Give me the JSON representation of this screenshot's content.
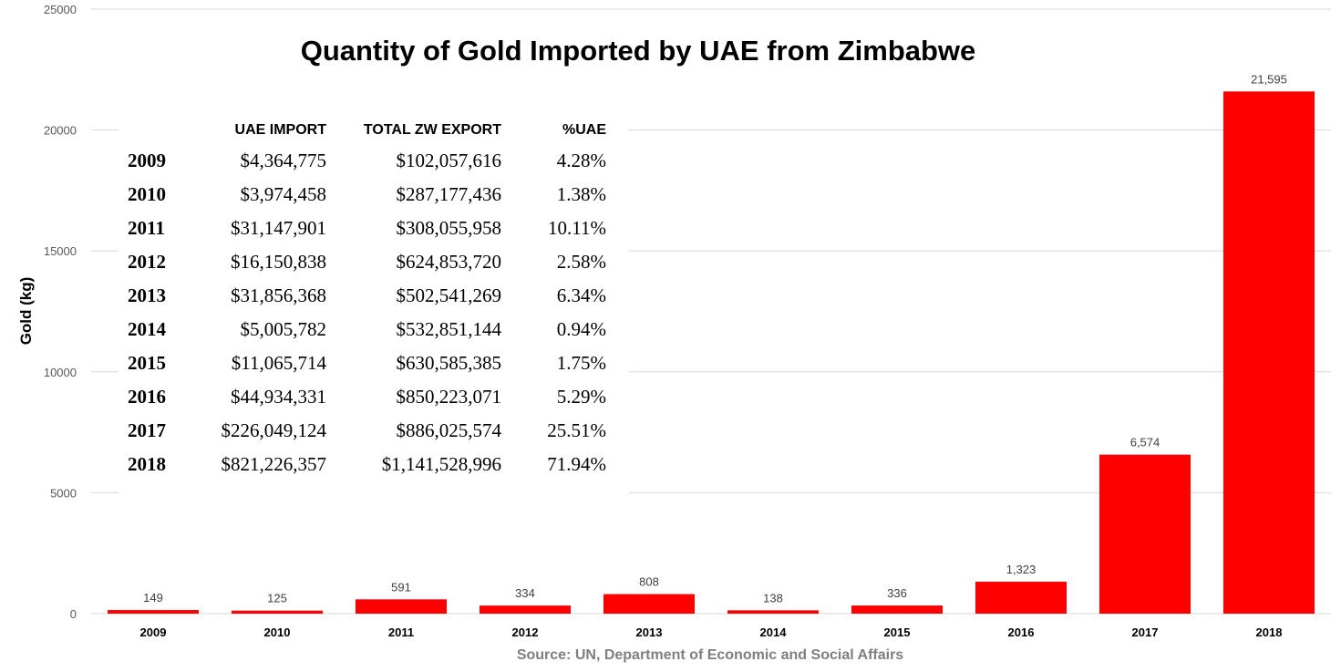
{
  "chart_data": {
    "type": "bar",
    "title": "Quantity of Gold Imported by UAE from Zimbabwe",
    "ylabel": "Gold (kg)",
    "xlabel": "",
    "categories": [
      "2009",
      "2010",
      "2011",
      "2012",
      "2013",
      "2014",
      "2015",
      "2016",
      "2017",
      "2018"
    ],
    "values": [
      149,
      125,
      591,
      334,
      808,
      138,
      336,
      1323,
      6574,
      21595
    ],
    "data_labels": [
      "149",
      "125",
      "591",
      "334",
      "808",
      "138",
      "336",
      "1,323",
      "6,574",
      "21,595"
    ],
    "ylim": [
      0,
      25000
    ],
    "yticks": [
      0,
      5000,
      10000,
      15000,
      20000,
      25000
    ],
    "ytick_labels": [
      "0",
      "5000",
      "10000",
      "15000",
      "20000",
      "25000"
    ],
    "bar_color": "#ff0000",
    "grid": true,
    "legend": "none"
  },
  "source": "Source: UN, Department of Economic and Social Affairs",
  "table": {
    "headers": [
      "",
      "UAE IMPORT",
      "TOTAL ZW EXPORT",
      "%UAE"
    ],
    "rows": [
      [
        "2009",
        "$4,364,775",
        "$102,057,616",
        "4.28%"
      ],
      [
        "2010",
        "$3,974,458",
        "$287,177,436",
        "1.38%"
      ],
      [
        "2011",
        "$31,147,901",
        "$308,055,958",
        "10.11%"
      ],
      [
        "2012",
        "$16,150,838",
        "$624,853,720",
        "2.58%"
      ],
      [
        "2013",
        "$31,856,368",
        "$502,541,269",
        "6.34%"
      ],
      [
        "2014",
        "$5,005,782",
        "$532,851,144",
        "0.94%"
      ],
      [
        "2015",
        "$11,065,714",
        "$630,585,385",
        "1.75%"
      ],
      [
        "2016",
        "$44,934,331",
        "$850,223,071",
        "5.29%"
      ],
      [
        "2017",
        "$226,049,124",
        "$886,025,574",
        "25.51%"
      ],
      [
        "2018",
        "$821,226,357",
        "$1,141,528,996",
        "71.94%"
      ]
    ]
  }
}
